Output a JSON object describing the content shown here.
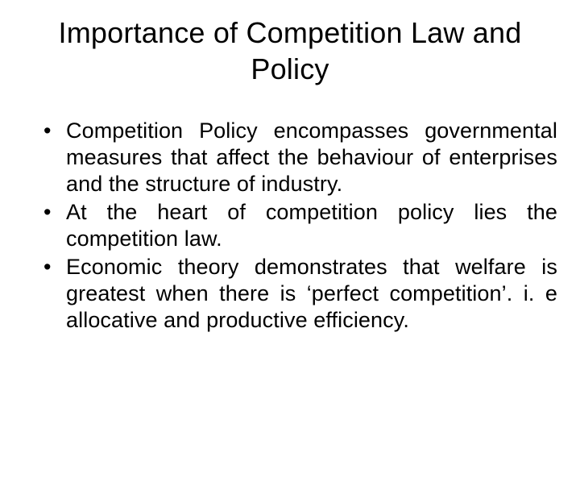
{
  "slide": {
    "title": "Importance of Competition Law and Policy",
    "bullets": [
      "Competition Policy encompasses governmental measures that affect the behaviour of enterprises and the structure of industry.",
      "At the heart of competition policy lies the competition law.",
      "Economic theory demonstrates that welfare is greatest when there is ‘perfect competition’. i. e allocative and productive efficiency."
    ]
  },
  "style": {
    "background_color": "#ffffff",
    "text_color": "#000000",
    "title_fontsize": 36,
    "body_fontsize": 27,
    "font_family": "Arial"
  }
}
